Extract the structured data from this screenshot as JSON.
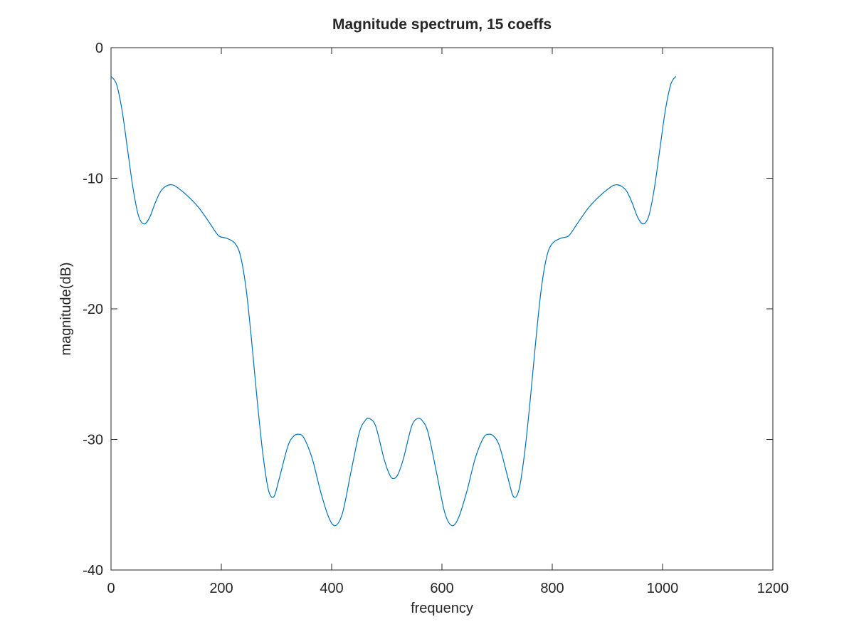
{
  "chart_data": {
    "type": "line",
    "title": "Magnitude spectrum, 15 coeffs",
    "xlabel": "frequency",
    "ylabel": "magnitude(dB)",
    "xlim": [
      0,
      1200
    ],
    "ylim": [
      -40,
      0
    ],
    "xticks": [
      0,
      200,
      400,
      600,
      800,
      1000,
      1200
    ],
    "yticks": [
      0,
      -10,
      -20,
      -30,
      -40
    ],
    "xtick_labels": [
      "0",
      "200",
      "400",
      "600",
      "800",
      "1000",
      "1200"
    ],
    "ytick_labels": [
      "0",
      "-10",
      "-20",
      "-30",
      "-40"
    ],
    "grid": false,
    "series": [
      {
        "color": "#0072bd",
        "points": [
          [
            0,
            -2.2
          ],
          [
            10,
            -2.8
          ],
          [
            20,
            -4.8
          ],
          [
            30,
            -7.8
          ],
          [
            40,
            -10.8
          ],
          [
            50,
            -12.9
          ],
          [
            60,
            -13.5
          ],
          [
            70,
            -13.0
          ],
          [
            80,
            -11.9
          ],
          [
            90,
            -11.0
          ],
          [
            100,
            -10.6
          ],
          [
            110,
            -10.5
          ],
          [
            120,
            -10.7
          ],
          [
            140,
            -11.4
          ],
          [
            160,
            -12.3
          ],
          [
            180,
            -13.5
          ],
          [
            195,
            -14.4
          ],
          [
            210,
            -14.6
          ],
          [
            225,
            -15.0
          ],
          [
            235,
            -16.0
          ],
          [
            245,
            -18.5
          ],
          [
            255,
            -22.5
          ],
          [
            265,
            -27.0
          ],
          [
            275,
            -31.0
          ],
          [
            285,
            -33.8
          ],
          [
            295,
            -34.4
          ],
          [
            305,
            -33.0
          ],
          [
            320,
            -30.6
          ],
          [
            330,
            -29.8
          ],
          [
            340,
            -29.6
          ],
          [
            350,
            -29.9
          ],
          [
            365,
            -31.5
          ],
          [
            380,
            -34.0
          ],
          [
            395,
            -36.0
          ],
          [
            407,
            -36.6
          ],
          [
            420,
            -35.6
          ],
          [
            435,
            -32.5
          ],
          [
            450,
            -29.5
          ],
          [
            460,
            -28.6
          ],
          [
            468,
            -28.4
          ],
          [
            480,
            -29.0
          ],
          [
            495,
            -31.5
          ],
          [
            505,
            -32.7
          ],
          [
            512,
            -33.0
          ],
          [
            520,
            -32.7
          ],
          [
            530,
            -31.5
          ],
          [
            545,
            -29.0
          ],
          [
            556,
            -28.4
          ],
          [
            565,
            -28.6
          ],
          [
            575,
            -29.5
          ],
          [
            590,
            -32.5
          ],
          [
            605,
            -35.6
          ],
          [
            618,
            -36.6
          ],
          [
            630,
            -36.0
          ],
          [
            645,
            -34.0
          ],
          [
            660,
            -31.5
          ],
          [
            675,
            -29.9
          ],
          [
            685,
            -29.6
          ],
          [
            695,
            -29.8
          ],
          [
            705,
            -30.6
          ],
          [
            720,
            -33.0
          ],
          [
            730,
            -34.4
          ],
          [
            740,
            -33.8
          ],
          [
            750,
            -31.0
          ],
          [
            760,
            -27.0
          ],
          [
            770,
            -22.5
          ],
          [
            780,
            -18.5
          ],
          [
            790,
            -16.0
          ],
          [
            800,
            -15.0
          ],
          [
            815,
            -14.6
          ],
          [
            830,
            -14.4
          ],
          [
            845,
            -13.5
          ],
          [
            865,
            -12.3
          ],
          [
            885,
            -11.4
          ],
          [
            905,
            -10.7
          ],
          [
            915,
            -10.5
          ],
          [
            925,
            -10.6
          ],
          [
            935,
            -11.0
          ],
          [
            945,
            -11.9
          ],
          [
            955,
            -13.0
          ],
          [
            965,
            -13.5
          ],
          [
            975,
            -12.9
          ],
          [
            985,
            -10.8
          ],
          [
            995,
            -7.8
          ],
          [
            1005,
            -4.8
          ],
          [
            1015,
            -2.8
          ],
          [
            1024,
            -2.2
          ]
        ]
      }
    ]
  }
}
